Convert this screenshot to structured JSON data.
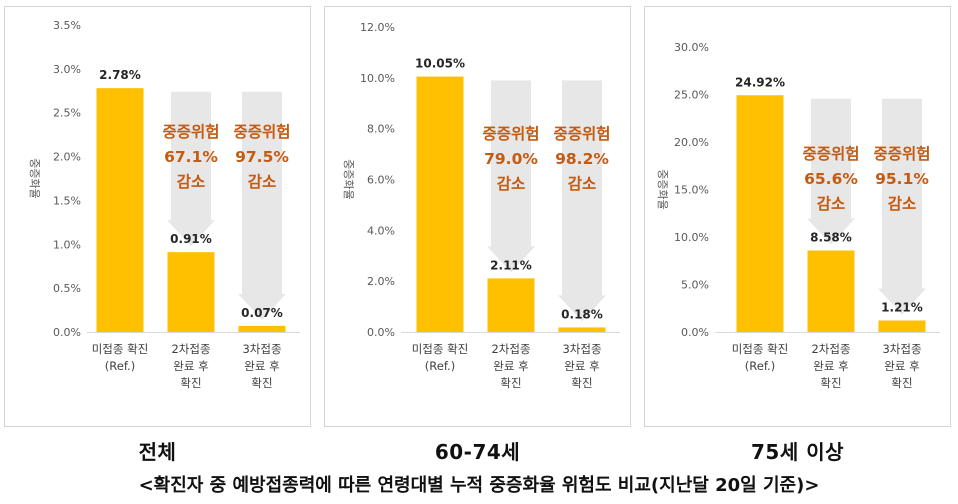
{
  "caption": "<확진자 중 예방접종력에 따른 연령대별 누적 중증화율 위험도 비교(지난달 20일 기준)>",
  "colors": {
    "bar": "#ffc000",
    "arrow": "#e7e7e7",
    "annotation": "#c55a11"
  },
  "chart_data": [
    {
      "type": "bar",
      "title": "전체",
      "ylabel": "중증화율",
      "categories": [
        [
          "미접종 확진",
          "(Ref.)"
        ],
        [
          "2차접종",
          "완료 후",
          "확진"
        ],
        [
          "3차접종",
          "완료 후",
          "확진"
        ]
      ],
      "values": [
        2.78,
        0.91,
        0.07
      ],
      "value_labels": [
        "2.78%",
        "0.91%",
        "0.07%"
      ],
      "ylim": [
        0,
        3.5
      ],
      "yticks": [
        "0.0%",
        "0.5%",
        "1.0%",
        "1.5%",
        "2.0%",
        "2.5%",
        "3.0%",
        "3.5%"
      ],
      "annotations": [
        {
          "category": 1,
          "lines": [
            "중증위험",
            "67.1%",
            "감소"
          ]
        },
        {
          "category": 2,
          "lines": [
            "중증위험",
            "97.5%",
            "감소"
          ]
        }
      ]
    },
    {
      "type": "bar",
      "title": "60-74세",
      "ylabel": "중증화율",
      "categories": [
        [
          "미접종 확진",
          "(Ref.)"
        ],
        [
          "2차접종",
          "완료 후",
          "확진"
        ],
        [
          "3차접종",
          "완료 후",
          "확진"
        ]
      ],
      "values": [
        10.05,
        2.11,
        0.18
      ],
      "value_labels": [
        "10.05%",
        "2.11%",
        "0.18%"
      ],
      "ylim": [
        0,
        12
      ],
      "yticks": [
        "0.0%",
        "2.0%",
        "4.0%",
        "6.0%",
        "8.0%",
        "10.0%",
        "12.0%"
      ],
      "annotations": [
        {
          "category": 1,
          "lines": [
            "중증위험",
            "79.0%",
            "감소"
          ]
        },
        {
          "category": 2,
          "lines": [
            "중증위험",
            "98.2%",
            "감소"
          ]
        }
      ]
    },
    {
      "type": "bar",
      "title": "75세 이상",
      "ylabel": "중증화율",
      "categories": [
        [
          "미접종 확진",
          "(Ref.)"
        ],
        [
          "2차접종",
          "완료 후",
          "확진"
        ],
        [
          "3차접종",
          "완료 후",
          "확진"
        ]
      ],
      "values": [
        24.92,
        8.58,
        1.21
      ],
      "value_labels": [
        "24.92%",
        "8.58%",
        "1.21%"
      ],
      "ylim": [
        0,
        30
      ],
      "yticks": [
        "0.0%",
        "5.0%",
        "10.0%",
        "15.0%",
        "20.0%",
        "25.0%",
        "30.0%"
      ],
      "annotations": [
        {
          "category": 1,
          "lines": [
            "중증위험",
            "65.6%",
            "감소"
          ]
        },
        {
          "category": 2,
          "lines": [
            "중증위험",
            "95.1%",
            "감소"
          ]
        }
      ]
    }
  ]
}
